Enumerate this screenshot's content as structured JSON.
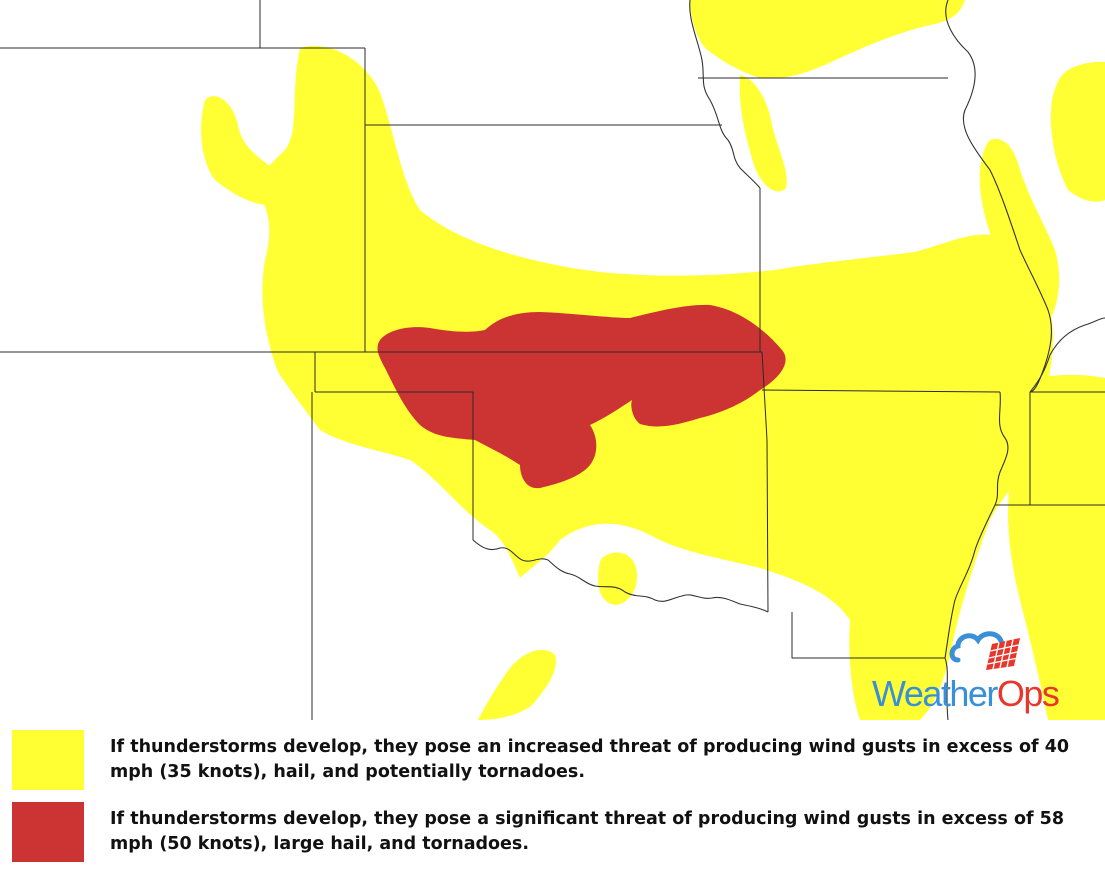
{
  "map": {
    "colors": {
      "background": "#ffffff",
      "increased_threat": "#ffff33",
      "significant_threat": "#cc3333",
      "boundaries": "#2b2b2b"
    }
  },
  "logo": {
    "part1": "Weather",
    "part2": "Ops",
    "icon": "cloud-grid-icon",
    "colors": {
      "weather": "#3a8fd9",
      "ops": "#e8362b"
    }
  },
  "legend": {
    "items": [
      {
        "color": "#ffff33",
        "text": "If thunderstorms develop, they pose an increased threat of producing wind gusts in excess of 40 mph (35 knots), hail, and potentially tornadoes."
      },
      {
        "color": "#cc3333",
        "text": "If thunderstorms develop, they pose a significant threat of producing wind gusts in excess of 58 mph (50 knots), large hail, and tornadoes."
      }
    ]
  }
}
